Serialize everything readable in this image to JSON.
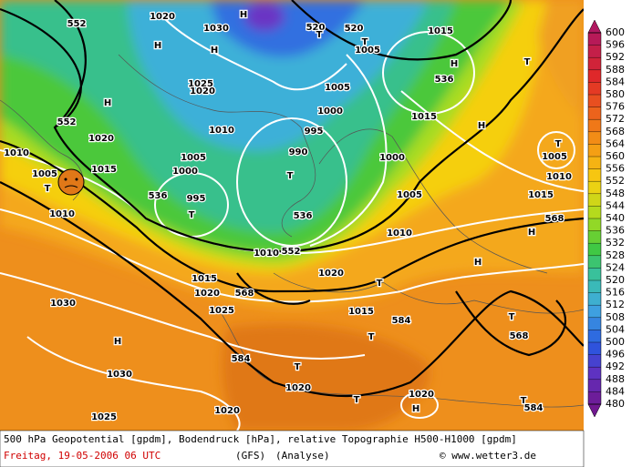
{
  "map": {
    "labels": [
      "552",
      "1020",
      "H",
      "1030",
      "520",
      "520",
      "T",
      "T",
      "1005",
      "1015",
      "H",
      "H",
      "536",
      "T",
      "H",
      "1025",
      "1020",
      "1005",
      "H",
      "552",
      "1000",
      "1015",
      "H",
      "1020",
      "1010",
      "995",
      "T",
      "1010",
      "1005",
      "990",
      "1000",
      "1005",
      "1005",
      "1015",
      "1000",
      "T",
      "1010",
      "T",
      "536",
      "995",
      "1005",
      "1015",
      "1010",
      "T",
      "536",
      "568",
      "1010",
      "H",
      "552",
      "1010",
      "1020",
      "H",
      "1015",
      "T",
      "568",
      "1020",
      "1030",
      "1025",
      "1015",
      "584",
      "T",
      "568",
      "H",
      "T",
      "584",
      "T",
      "1030",
      "1020",
      "1020",
      "T",
      "H",
      "1020",
      "T",
      "584",
      "1025"
    ]
  },
  "colorbar": {
    "labels": [
      600,
      596,
      592,
      588,
      584,
      580,
      576,
      572,
      568,
      564,
      560,
      556,
      552,
      548,
      544,
      540,
      536,
      532,
      528,
      524,
      520,
      516,
      512,
      508,
      504,
      500,
      496,
      492,
      488,
      484,
      480
    ]
  },
  "caption": {
    "line1": "500 hPa Geopotential [gpdm], Bodendruck [hPa], relative Topographie H500-H1000 [gpdm]",
    "date": "Freitag, 19-05-2006  06 UTC",
    "model": "(GFS)",
    "run": "(Analyse)",
    "credit": "© www.wetter3.de"
  }
}
